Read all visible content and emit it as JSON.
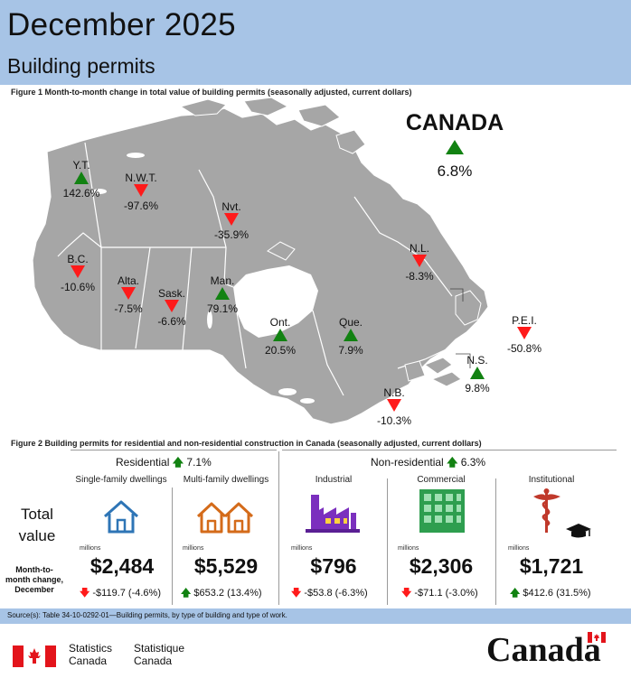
{
  "header": {
    "title": "December 2025",
    "subtitle": "Building permits"
  },
  "figure1": {
    "caption": "Figure 1  Month-to-month change in total value of building permits (seasonally adjusted, current dollars)",
    "canada": {
      "name": "CANADA",
      "value": "6.8%",
      "direction": "up"
    },
    "provinces": [
      {
        "key": "yt",
        "name": "Y.T.",
        "value": "142.6%",
        "direction": "up"
      },
      {
        "key": "nwt",
        "name": "N.W.T.",
        "value": "-97.6%",
        "direction": "down"
      },
      {
        "key": "nvt",
        "name": "Nvt.",
        "value": "-35.9%",
        "direction": "down"
      },
      {
        "key": "bc",
        "name": "B.C.",
        "value": "-10.6%",
        "direction": "down"
      },
      {
        "key": "alta",
        "name": "Alta.",
        "value": "-7.5%",
        "direction": "down"
      },
      {
        "key": "sask",
        "name": "Sask.",
        "value": "-6.6%",
        "direction": "down"
      },
      {
        "key": "man",
        "name": "Man.",
        "value": "79.1%",
        "direction": "up"
      },
      {
        "key": "ont",
        "name": "Ont.",
        "value": "20.5%",
        "direction": "up"
      },
      {
        "key": "que",
        "name": "Que.",
        "value": "7.9%",
        "direction": "up"
      },
      {
        "key": "nl",
        "name": "N.L.",
        "value": "-8.3%",
        "direction": "down"
      },
      {
        "key": "pei",
        "name": "P.E.I.",
        "value": "-50.8%",
        "direction": "down"
      },
      {
        "key": "ns",
        "name": "N.S.",
        "value": "9.8%",
        "direction": "up"
      },
      {
        "key": "nb",
        "name": "N.B.",
        "value": "-10.3%",
        "direction": "down"
      }
    ],
    "colors": {
      "up": "#128212",
      "down": "#ff1a1a",
      "land": "#a6a6a6",
      "water": "#ffffff"
    }
  },
  "figure2": {
    "caption": "Figure 2  Building permits for residential and non-residential construction in Canada (seasonally adjusted, current dollars)",
    "residential": {
      "label": "Residential",
      "change": "7.1%",
      "direction": "up"
    },
    "non_residential": {
      "label": "Non-residential",
      "change": "6.3%",
      "direction": "up"
    },
    "row_total": "Total value",
    "row_change": "Month-to-month change, December",
    "unit": "millions",
    "columns": [
      {
        "key": "single",
        "label": "Single-family dwellings",
        "value": "$2,484",
        "change": "-$119.7 (-4.6%)",
        "direction": "down",
        "icon": "house-icon"
      },
      {
        "key": "multi",
        "label": "Multi-family dwellings",
        "value": "$5,529",
        "change": "$653.2 (13.4%)",
        "direction": "up",
        "icon": "two-houses-icon"
      },
      {
        "key": "industrial",
        "label": "Industrial",
        "value": "$796",
        "change": "-$53.8 (-6.3%)",
        "direction": "down",
        "icon": "factory-icon"
      },
      {
        "key": "commercial",
        "label": "Commercial",
        "value": "$2,306",
        "change": "-$71.1 (-3.0%)",
        "direction": "down",
        "icon": "office-building-icon"
      },
      {
        "key": "institutional",
        "label": "Institutional",
        "value": "$1,721",
        "change": "$412.6 (31.5%)",
        "direction": "up",
        "icon": "caduceus-graduation-cap-icon"
      }
    ]
  },
  "source": "Source(s): Table 34-10-0292-01—Building  permits,  by type of building  and type of work.",
  "footer": {
    "agency_en_line1": "Statistics",
    "agency_en_line2": "Canada",
    "agency_fr_line1": "Statistique",
    "agency_fr_line2": "Canada",
    "wordmark": "Canada"
  }
}
